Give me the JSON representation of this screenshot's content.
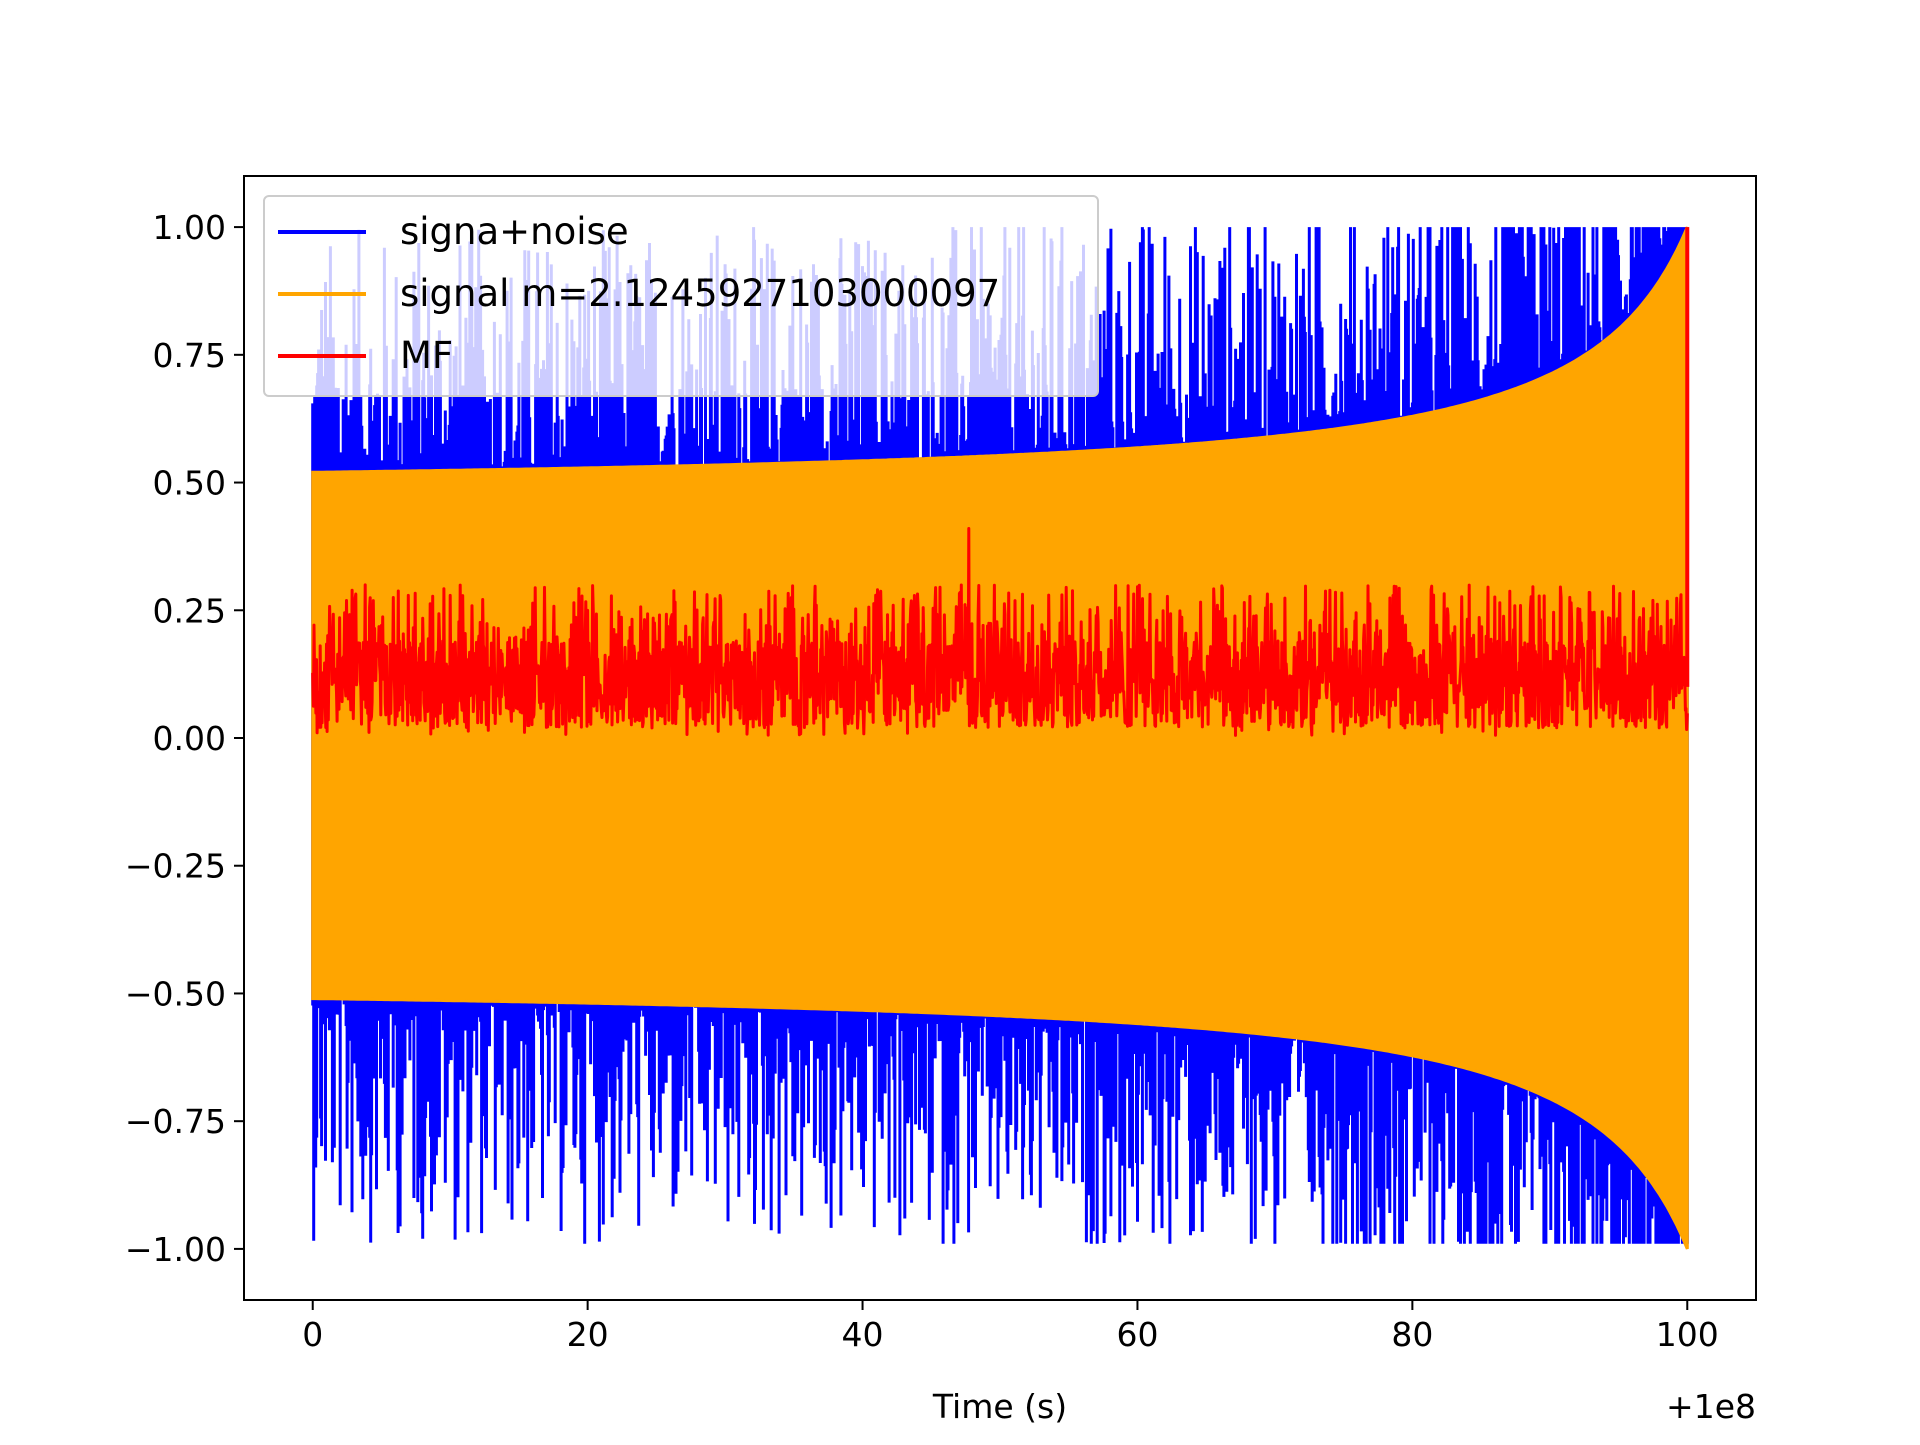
{
  "chart_data": {
    "type": "line",
    "title": "",
    "xlabel": "Time (s)",
    "ylabel": "",
    "x_offset_label": "+1e8",
    "xlim": [
      -5,
      105
    ],
    "ylim": [
      -1.1,
      1.1
    ],
    "x_ticks": [
      0,
      20,
      40,
      60,
      80,
      100
    ],
    "x_tick_labels": [
      "0",
      "20",
      "40",
      "60",
      "80",
      "100"
    ],
    "y_ticks": [
      1.0,
      0.75,
      0.5,
      0.25,
      0.0,
      -0.25,
      -0.5,
      -0.75,
      -1.0
    ],
    "y_tick_labels": [
      "1.00",
      "0.75",
      "0.50",
      "0.25",
      "0.00",
      "−0.25",
      "−0.50",
      "−0.75",
      "−1.00"
    ],
    "grid": false,
    "legend_position": "top-left",
    "series": [
      {
        "name": "signa+noise",
        "color": "#0000ff",
        "x_range": [
          0,
          100
        ],
        "envelope_upper_start": 0.52,
        "envelope_upper_end": 1.0,
        "envelope_lower_start": -0.51,
        "envelope_lower_end": -1.0,
        "peak_max": 1.0,
        "peak_min": -0.99
      },
      {
        "name": "signal m=2.1245927103000097",
        "color": "#ffa500",
        "x_range": [
          0,
          100
        ],
        "envelope_upper_start": 0.52,
        "envelope_upper_end": 1.0,
        "envelope_lower_start": -0.51,
        "envelope_lower_end": -1.0
      },
      {
        "name": "MF",
        "color": "#ff0000",
        "x_range": [
          0,
          100
        ],
        "band_min": 0.0,
        "band_max": 0.3,
        "peak_x": 100,
        "peak_value": 1.0
      }
    ]
  }
}
